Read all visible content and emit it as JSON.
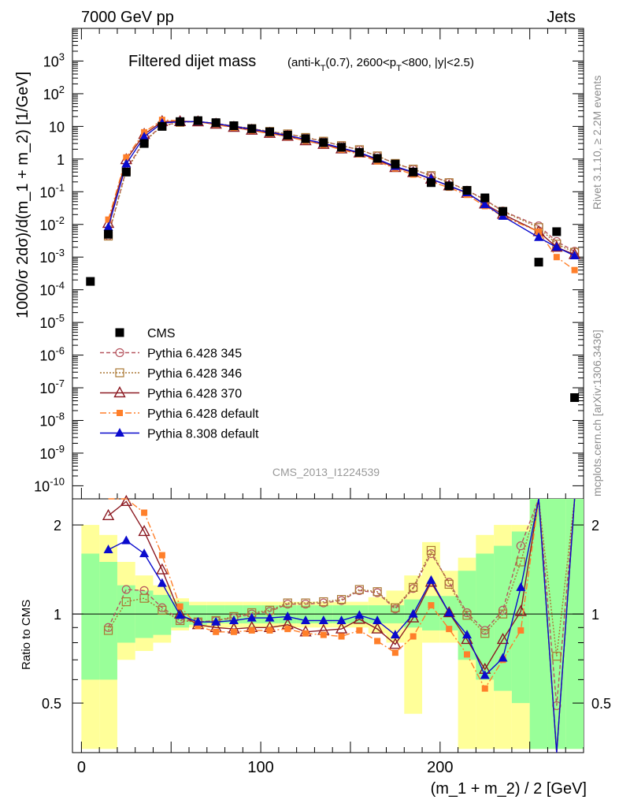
{
  "header": {
    "left": "7000 GeV pp",
    "right": "Jets"
  },
  "side_labels": {
    "rivet": "Rivet 3.1.10, ≥ 2.2M events",
    "mcplots": "mcplots.cern.ch [arXiv:1306.3436]"
  },
  "chart_data": {
    "type": "line",
    "title": "Filtered dijet mass",
    "subtitle": "(anti-k_T(0.7), 2600<p_T<800, |y|<2.5)",
    "analysis_label": "CMS_2013_I1224539",
    "xlabel": "(m_1 + m_2) / 2 [GeV]",
    "ylabel": "1000/σ 2dσ)/d(m_1 + m_2) [1/GeV]",
    "ratio_ylabel": "Ratio to CMS",
    "xlim": [
      -5,
      280
    ],
    "ylim_log10": [
      -10.4,
      4
    ],
    "ratio_ylim": [
      0.34,
      2.45
    ],
    "x_ticks": [
      "0",
      "100",
      "200"
    ],
    "ratio_ticks": [
      "0.5",
      "1",
      "2"
    ],
    "legend_position": "middle-left",
    "series": [
      {
        "name": "CMS",
        "color": "#000000",
        "points": [
          [
            5,
            0.00018
          ],
          [
            15,
            0.005
          ],
          [
            25,
            0.4
          ],
          [
            35,
            3
          ],
          [
            45,
            10
          ],
          [
            55,
            14
          ],
          [
            65,
            15
          ],
          [
            75,
            13
          ],
          [
            85,
            10.5
          ],
          [
            95,
            8.5
          ],
          [
            105,
            6.8
          ],
          [
            115,
            5.4
          ],
          [
            125,
            4.2
          ],
          [
            135,
            3.2
          ],
          [
            145,
            2.3
          ],
          [
            155,
            1.6
          ],
          [
            165,
            1.05
          ],
          [
            175,
            0.7
          ],
          [
            185,
            0.4
          ],
          [
            195,
            0.19
          ],
          [
            205,
            0.15
          ],
          [
            215,
            0.11
          ],
          [
            225,
            0.065
          ],
          [
            235,
            0.025
          ],
          [
            255,
            0.0007
          ],
          [
            265,
            0.006
          ],
          [
            275,
            5e-08
          ]
        ]
      },
      {
        "name": "Pythia 6.428 345",
        "color": "#b5555f",
        "ratio": [
          [
            15,
            0.9
          ],
          [
            25,
            1.21
          ],
          [
            35,
            1.2
          ],
          [
            45,
            1.05
          ],
          [
            55,
            0.96
          ],
          [
            65,
            0.94
          ],
          [
            75,
            0.95
          ],
          [
            85,
            0.97
          ],
          [
            95,
            1.0
          ],
          [
            105,
            1.02
          ],
          [
            115,
            1.08
          ],
          [
            125,
            1.08
          ],
          [
            135,
            1.09
          ],
          [
            145,
            1.11
          ],
          [
            155,
            1.2
          ],
          [
            165,
            1.18
          ],
          [
            175,
            1.04
          ],
          [
            185,
            1.22
          ],
          [
            195,
            1.6
          ],
          [
            205,
            1.28
          ],
          [
            215,
            1.01
          ],
          [
            225,
            0.88
          ],
          [
            235,
            1.03
          ],
          [
            245,
            1.7
          ],
          [
            255,
            4.0
          ],
          [
            265,
            0.49
          ],
          [
            275,
            3.0
          ]
        ]
      },
      {
        "name": "Pythia 6.428 346",
        "color": "#aa7733",
        "ratio": [
          [
            15,
            0.88
          ],
          [
            25,
            1.1
          ],
          [
            35,
            1.13
          ],
          [
            45,
            1.03
          ],
          [
            55,
            0.95
          ],
          [
            65,
            0.94
          ],
          [
            75,
            0.95
          ],
          [
            85,
            0.98
          ],
          [
            95,
            1.01
          ],
          [
            105,
            1.03
          ],
          [
            115,
            1.09
          ],
          [
            125,
            1.09
          ],
          [
            135,
            1.1
          ],
          [
            145,
            1.12
          ],
          [
            155,
            1.21
          ],
          [
            165,
            1.19
          ],
          [
            175,
            1.05
          ],
          [
            185,
            1.23
          ],
          [
            195,
            1.64
          ],
          [
            205,
            1.26
          ],
          [
            215,
            0.99
          ],
          [
            225,
            0.86
          ],
          [
            235,
            1.0
          ],
          [
            245,
            1.5
          ],
          [
            255,
            4.0
          ],
          [
            265,
            0.72
          ],
          [
            275,
            3.0
          ]
        ]
      },
      {
        "name": "Pythia 6.428 370",
        "color": "#8c1a22",
        "ratio": [
          [
            15,
            2.15
          ],
          [
            25,
            2.4
          ],
          [
            35,
            1.9
          ],
          [
            45,
            1.41
          ],
          [
            55,
            1.0
          ],
          [
            65,
            0.92
          ],
          [
            75,
            0.9
          ],
          [
            85,
            0.89
          ],
          [
            95,
            0.9
          ],
          [
            105,
            0.9
          ],
          [
            115,
            0.92
          ],
          [
            125,
            0.87
          ],
          [
            135,
            0.88
          ],
          [
            145,
            0.89
          ],
          [
            155,
            0.96
          ],
          [
            165,
            0.89
          ],
          [
            175,
            0.79
          ],
          [
            185,
            0.97
          ],
          [
            195,
            1.28
          ],
          [
            205,
            1.01
          ],
          [
            215,
            0.82
          ],
          [
            225,
            0.65
          ],
          [
            235,
            0.82
          ],
          [
            245,
            1.02
          ],
          [
            255,
            4.0
          ],
          [
            265,
            0.3
          ],
          [
            275,
            3.0
          ]
        ]
      },
      {
        "name": "Pythia 6.428 default",
        "color": "#ff7f2a",
        "ratio": [
          [
            15,
            2.8
          ],
          [
            25,
            2.8
          ],
          [
            35,
            2.2
          ],
          [
            45,
            1.58
          ],
          [
            55,
            1.06
          ],
          [
            65,
            0.91
          ],
          [
            75,
            0.87
          ],
          [
            85,
            0.87
          ],
          [
            95,
            0.88
          ],
          [
            105,
            0.88
          ],
          [
            115,
            0.89
          ],
          [
            125,
            0.86
          ],
          [
            135,
            0.85
          ],
          [
            145,
            0.84
          ],
          [
            155,
            0.88
          ],
          [
            165,
            0.81
          ],
          [
            175,
            0.74
          ],
          [
            185,
            0.84
          ],
          [
            195,
            1.07
          ],
          [
            205,
            0.89
          ],
          [
            215,
            0.73
          ],
          [
            225,
            0.56
          ],
          [
            235,
            0.7
          ],
          [
            245,
            0.88
          ],
          [
            255,
            4.0
          ],
          [
            265,
            0.3
          ],
          [
            275,
            2.5
          ]
        ]
      },
      {
        "name": "Pythia 8.308 default",
        "color": "#0a0acd",
        "ratio": [
          [
            15,
            1.65
          ],
          [
            25,
            1.77
          ],
          [
            35,
            1.6
          ],
          [
            45,
            1.27
          ],
          [
            55,
            0.99
          ],
          [
            65,
            0.94
          ],
          [
            75,
            0.94
          ],
          [
            85,
            0.95
          ],
          [
            95,
            0.97
          ],
          [
            105,
            0.97
          ],
          [
            115,
            0.98
          ],
          [
            125,
            0.95
          ],
          [
            135,
            0.95
          ],
          [
            145,
            0.95
          ],
          [
            155,
            0.99
          ],
          [
            165,
            0.95
          ],
          [
            175,
            0.85
          ],
          [
            185,
            1.0
          ],
          [
            195,
            1.3
          ],
          [
            205,
            1.01
          ],
          [
            215,
            0.85
          ],
          [
            225,
            0.62
          ],
          [
            235,
            0.71
          ],
          [
            245,
            1.23
          ],
          [
            255,
            4.0
          ],
          [
            265,
            0.3
          ],
          [
            275,
            3.0
          ]
        ]
      }
    ],
    "uncertainty_bands": {
      "x_edges": [
        0,
        10,
        20,
        30,
        40,
        50,
        60,
        70,
        80,
        90,
        100,
        110,
        120,
        130,
        140,
        150,
        160,
        170,
        180,
        190,
        200,
        210,
        220,
        230,
        240,
        250,
        260,
        270,
        280
      ],
      "stat": [
        [
          0.6,
          1.6
        ],
        [
          0.6,
          1.5
        ],
        [
          0.8,
          1.25
        ],
        [
          0.83,
          1.2
        ],
        [
          0.85,
          1.16
        ],
        [
          0.9,
          1.1
        ],
        [
          0.92,
          1.07
        ],
        [
          0.93,
          1.07
        ],
        [
          0.93,
          1.07
        ],
        [
          0.93,
          1.07
        ],
        [
          0.93,
          1.07
        ],
        [
          0.93,
          1.07
        ],
        [
          0.93,
          1.07
        ],
        [
          0.93,
          1.07
        ],
        [
          0.93,
          1.07
        ],
        [
          0.93,
          1.07
        ],
        [
          0.93,
          1.07
        ],
        [
          0.93,
          1.07
        ],
        [
          0.9,
          1.12
        ],
        [
          0.88,
          1.15
        ],
        [
          0.88,
          1.15
        ],
        [
          0.7,
          1.4
        ],
        [
          0.6,
          1.6
        ],
        [
          0.55,
          1.7
        ],
        [
          0.5,
          1.9
        ],
        [
          0.35,
          2.5
        ],
        [
          0.35,
          2.5
        ],
        [
          0.35,
          2.5
        ]
      ],
      "total": [
        [
          0.35,
          2.0
        ],
        [
          0.35,
          1.85
        ],
        [
          0.7,
          1.5
        ],
        [
          0.75,
          1.35
        ],
        [
          0.8,
          1.25
        ],
        [
          0.88,
          1.13
        ],
        [
          0.9,
          1.1
        ],
        [
          0.9,
          1.1
        ],
        [
          0.9,
          1.1
        ],
        [
          0.9,
          1.1
        ],
        [
          0.9,
          1.1
        ],
        [
          0.9,
          1.1
        ],
        [
          0.9,
          1.1
        ],
        [
          0.9,
          1.1
        ],
        [
          0.9,
          1.1
        ],
        [
          0.9,
          1.1
        ],
        [
          0.86,
          1.14
        ],
        [
          0.8,
          1.2
        ],
        [
          0.46,
          1.35
        ],
        [
          0.8,
          1.75
        ],
        [
          0.8,
          1.4
        ],
        [
          0.35,
          1.55
        ],
        [
          0.35,
          1.85
        ],
        [
          0.35,
          2.0
        ],
        [
          0.35,
          2.0
        ],
        [
          0.35,
          2.5
        ],
        [
          0.35,
          2.5
        ],
        [
          0.35,
          2.5
        ]
      ]
    }
  }
}
